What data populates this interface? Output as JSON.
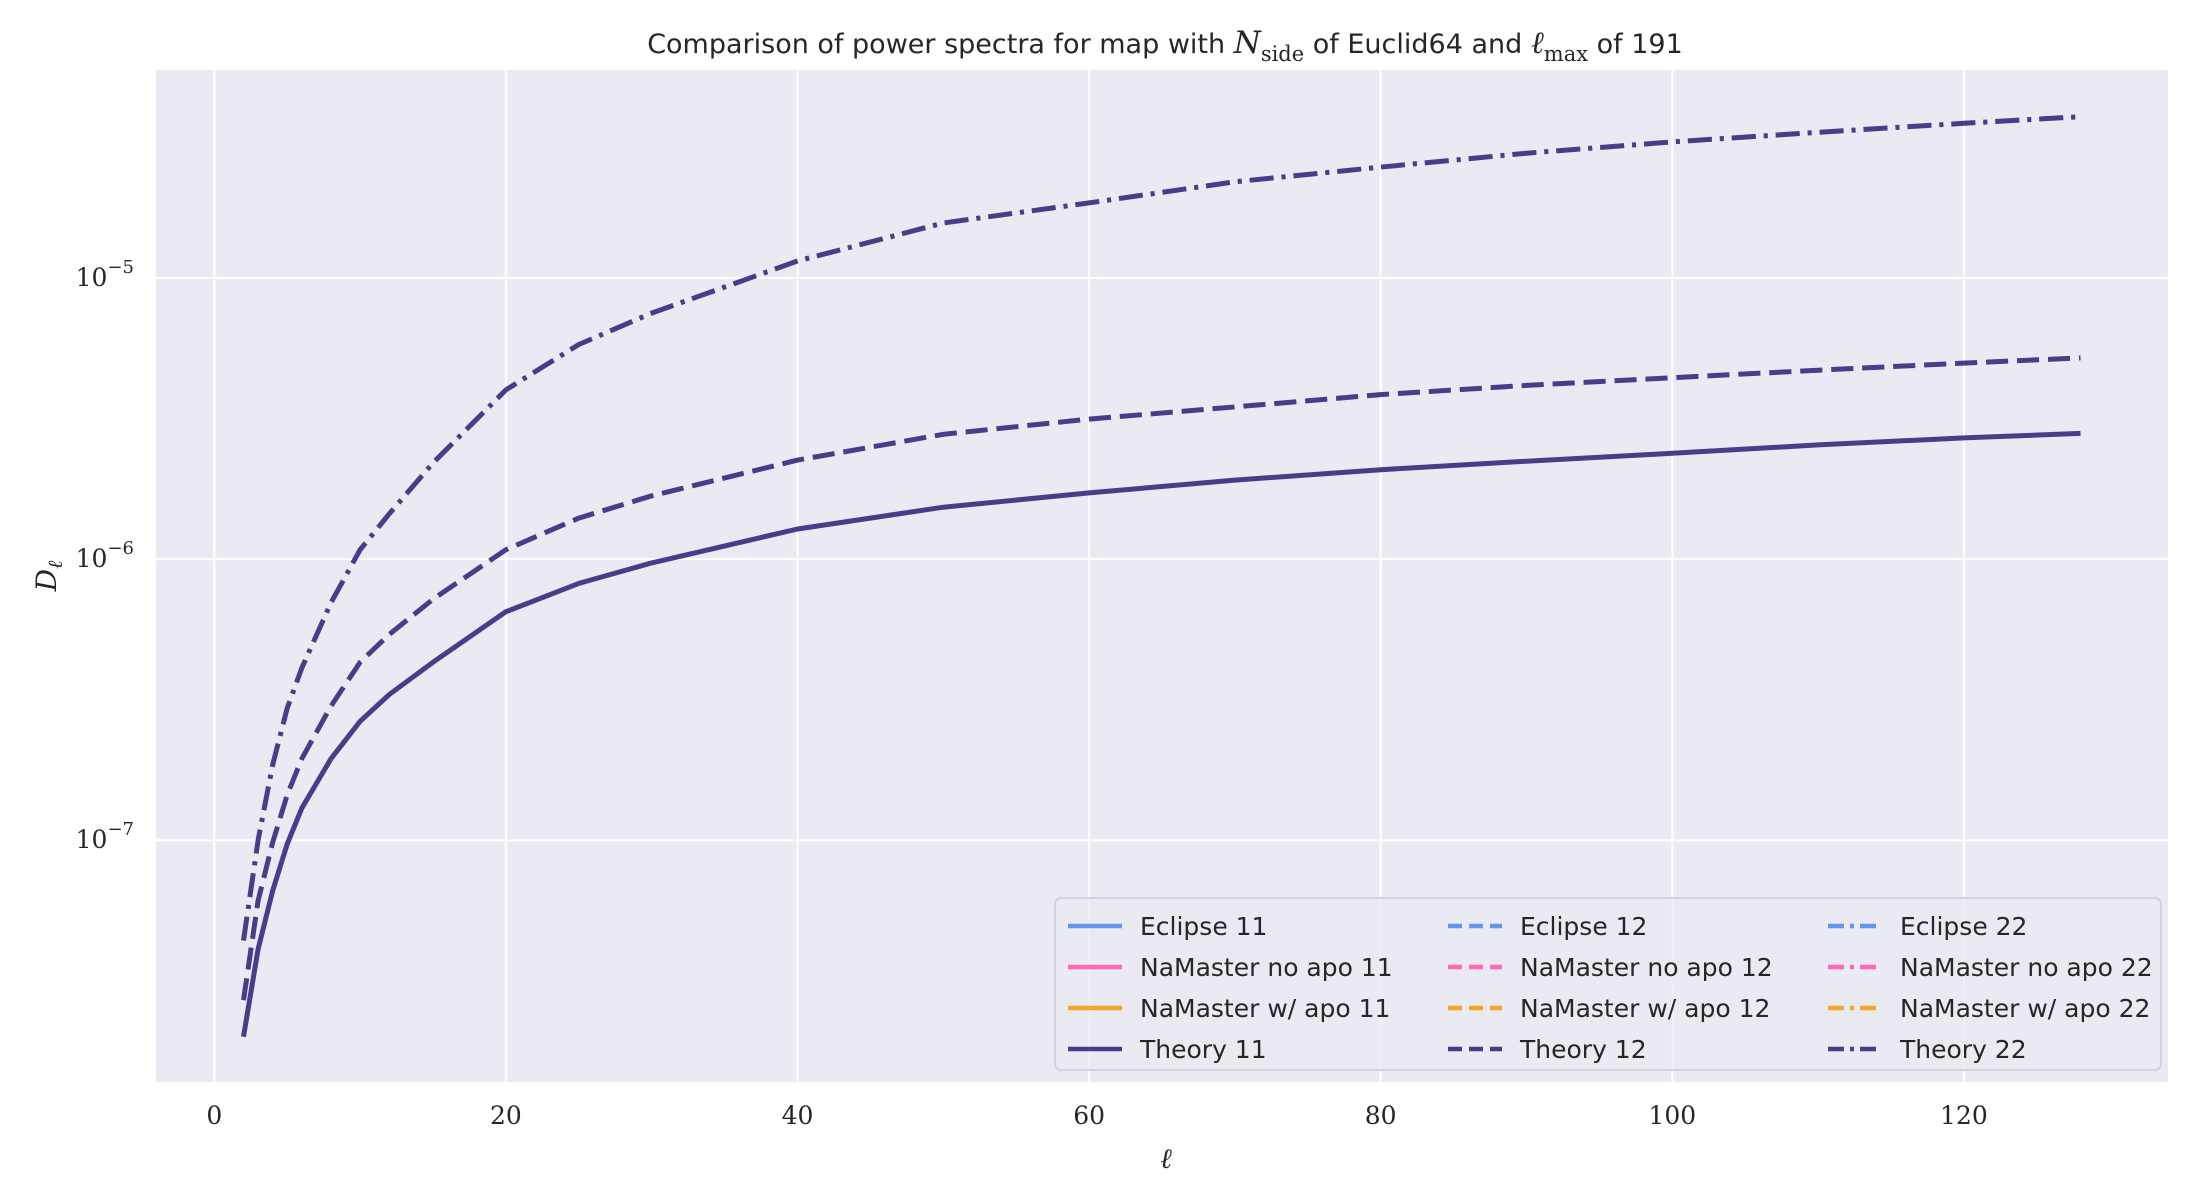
{
  "chart_data": {
    "type": "line",
    "title": "Comparison of power spectra for map with N_side of Euclid64 and ℓ_max of 191",
    "title_parts": {
      "p1": "Comparison of power spectra for map with ",
      "n": "N",
      "n_sub": "side",
      "p2": " of Euclid64 and ",
      "l": "ℓ",
      "l_sub": "max",
      "p3": " of 191"
    },
    "xlabel": "ℓ",
    "ylabel": "D",
    "ylabel_sub": "ℓ",
    "xlim": [
      -4,
      134
    ],
    "ylim_log10": [
      -7.86,
      -4.26
    ],
    "yscale": "log",
    "grid": true,
    "background": "#eaeaf2",
    "xticks": [
      0,
      20,
      40,
      60,
      80,
      100,
      120
    ],
    "yticks": [
      {
        "exp": -7,
        "base": "10",
        "sup": "−7"
      },
      {
        "exp": -6,
        "base": "10",
        "sup": "−6"
      },
      {
        "exp": -5,
        "base": "10",
        "sup": "−5"
      }
    ],
    "x": [
      2,
      3,
      4,
      5,
      6,
      8,
      10,
      12,
      15,
      20,
      25,
      30,
      40,
      50,
      60,
      70,
      80,
      90,
      100,
      110,
      120,
      128
    ],
    "curves": [
      {
        "group": "11",
        "values": [
          2e-08,
          4.1e-08,
          6.6e-08,
          9.7e-08,
          1.3e-07,
          1.95e-07,
          2.65e-07,
          3.3e-07,
          4.3e-07,
          6.5e-07,
          8.2e-07,
          9.7e-07,
          1.28e-06,
          1.53e-06,
          1.72e-06,
          1.91e-06,
          2.08e-06,
          2.23e-06,
          2.38e-06,
          2.55e-06,
          2.7e-06,
          2.8e-06
        ]
      },
      {
        "group": "12",
        "values": [
          2.7e-08,
          6.1e-08,
          9.8e-08,
          1.45e-07,
          1.95e-07,
          3e-07,
          4.3e-07,
          5.4e-07,
          7.2e-07,
          1.08e-06,
          1.4e-06,
          1.68e-06,
          2.25e-06,
          2.78e-06,
          3.15e-06,
          3.48e-06,
          3.85e-06,
          4.15e-06,
          4.42e-06,
          4.7e-06,
          4.98e-06,
          5.2e-06
        ]
      },
      {
        "group": "22",
        "values": [
          4.4e-08,
          1e-07,
          1.85e-07,
          2.95e-07,
          4.1e-07,
          7e-07,
          1.08e-06,
          1.45e-06,
          2.2e-06,
          4e-06,
          5.8e-06,
          7.5e-06,
          1.15e-05,
          1.57e-05,
          1.85e-05,
          2.2e-05,
          2.48e-05,
          2.78e-05,
          3.05e-05,
          3.3e-05,
          3.55e-05,
          3.75e-05
        ]
      }
    ],
    "series": [
      {
        "name": "Eclipse 11",
        "group": "11",
        "color": "#6495ed",
        "style": "solid"
      },
      {
        "name": "NaMaster no apo 11",
        "group": "11",
        "color": "#ff69b4",
        "style": "solid"
      },
      {
        "name": "NaMaster w/ apo 11",
        "group": "11",
        "color": "#f5a623",
        "style": "solid"
      },
      {
        "name": "Theory 11",
        "group": "11",
        "color": "#483d8b",
        "style": "solid"
      },
      {
        "name": "Eclipse 12",
        "group": "12",
        "color": "#6495ed",
        "style": "dashed"
      },
      {
        "name": "NaMaster no apo 12",
        "group": "12",
        "color": "#ff69b4",
        "style": "dashed"
      },
      {
        "name": "NaMaster w/ apo 12",
        "group": "12",
        "color": "#f5a623",
        "style": "dashed"
      },
      {
        "name": "Theory 12",
        "group": "12",
        "color": "#483d8b",
        "style": "dashed"
      },
      {
        "name": "Eclipse 22",
        "group": "22",
        "color": "#6495ed",
        "style": "dashdot"
      },
      {
        "name": "NaMaster no apo 22",
        "group": "22",
        "color": "#ff69b4",
        "style": "dashdot"
      },
      {
        "name": "NaMaster w/ apo 22",
        "group": "22",
        "color": "#f5a623",
        "style": "dashdot"
      },
      {
        "name": "Theory 22",
        "group": "22",
        "color": "#483d8b",
        "style": "dashdot"
      }
    ],
    "legend_placement": "lower-right",
    "legend_columns": 3
  }
}
